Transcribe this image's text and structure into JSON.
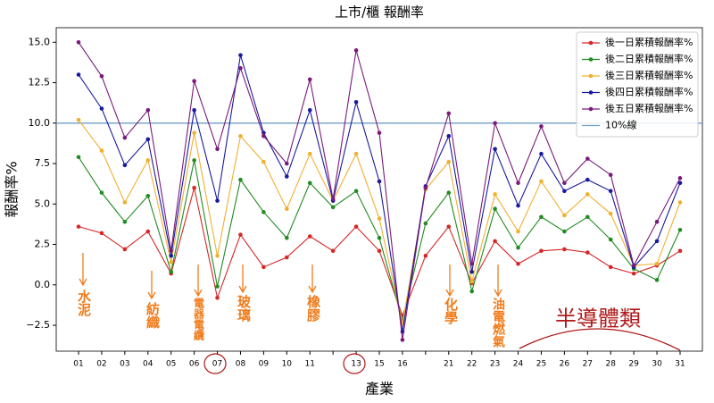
{
  "chart_data": {
    "type": "line",
    "title": "上市/櫃 報酬率",
    "xlabel": "產業",
    "ylabel": "報酬率%",
    "categories": [
      "01",
      "02",
      "03",
      "04",
      "05",
      "06",
      "07",
      "08",
      "09",
      "10",
      "11",
      null,
      "13",
      "15",
      "16",
      null,
      "21",
      "22",
      "23",
      "24",
      "25",
      "26",
      "27",
      "28",
      "29",
      "30",
      "31"
    ],
    "series": [
      {
        "name": "後一日累積報酬率%",
        "color": "#d62728",
        "values": [
          3.6,
          3.2,
          2.2,
          3.3,
          0.7,
          6.0,
          -0.8,
          3.1,
          1.1,
          1.7,
          3.0,
          2.1,
          3.6,
          2.1,
          -1.9,
          1.8,
          3.6,
          0.1,
          2.7,
          1.3,
          2.1,
          2.2,
          2.0,
          1.1,
          0.7,
          1.2,
          2.1
        ]
      },
      {
        "name": "後二日累積報酬率%",
        "color": "#228b22",
        "values": [
          7.9,
          5.7,
          3.9,
          5.5,
          0.8,
          7.7,
          -0.1,
          6.5,
          4.5,
          2.9,
          6.3,
          4.8,
          5.8,
          2.9,
          -2.2,
          3.8,
          5.7,
          -0.4,
          4.7,
          2.3,
          4.2,
          3.3,
          4.2,
          2.8,
          1.0,
          0.3,
          3.4
        ]
      },
      {
        "name": "後三日累積報酬率%",
        "color": "#f0b030",
        "values": [
          10.2,
          8.3,
          5.1,
          7.7,
          1.4,
          9.4,
          1.8,
          9.2,
          7.6,
          4.7,
          8.1,
          5.2,
          8.1,
          4.1,
          -2.4,
          5.9,
          7.6,
          0.2,
          5.6,
          3.3,
          6.4,
          4.3,
          5.6,
          4.4,
          1.2,
          1.3,
          5.1
        ]
      },
      {
        "name": "後四日累積報酬率%",
        "color": "#1a1aa0",
        "values": [
          13.0,
          10.9,
          7.4,
          9.0,
          1.8,
          10.8,
          5.2,
          14.2,
          9.4,
          6.7,
          10.8,
          5.2,
          11.3,
          6.4,
          -2.9,
          6.1,
          9.2,
          0.8,
          8.4,
          4.9,
          8.1,
          5.8,
          6.5,
          5.8,
          1.1,
          2.7,
          6.3
        ]
      },
      {
        "name": "後五日累積報酬率%",
        "color": "#7a1a7a",
        "values": [
          15.0,
          12.9,
          9.1,
          10.8,
          2.1,
          12.6,
          8.4,
          13.4,
          9.2,
          7.5,
          12.7,
          5.3,
          14.5,
          9.4,
          -3.4,
          6.0,
          10.6,
          1.3,
          10.0,
          6.3,
          9.8,
          6.3,
          7.8,
          6.8,
          1.2,
          3.9,
          6.6
        ]
      }
    ],
    "reference_line": {
      "name": "10%線",
      "value": 10,
      "color": "#6e9fc7"
    },
    "ylim": [
      -4.1,
      15.9
    ],
    "yticks": [
      {
        "value": -2.5,
        "label": "−2.5"
      },
      {
        "value": 0,
        "label": "0.0"
      },
      2.5,
      {
        "value": 5,
        "label": "5.0"
      },
      7.5,
      {
        "value": 10,
        "label": "10.0"
      },
      12.5,
      {
        "value": 15,
        "label": "15.0"
      }
    ],
    "legend": "upper right",
    "annotations": [
      {
        "text": "水泥",
        "color": "#f07b1a"
      },
      {
        "text": "紡織",
        "color": "#f07b1a"
      },
      {
        "text": "電器電纜",
        "color": "#f07b1a"
      },
      {
        "text": "玻璃",
        "color": "#f07b1a"
      },
      {
        "text": "橡膠",
        "color": "#f07b1a"
      },
      {
        "text": "化學",
        "color": "#f07b1a"
      },
      {
        "text": "油電燃氣",
        "color": "#f07b1a"
      },
      {
        "text": "半導體類",
        "color": "#b01818"
      }
    ]
  }
}
